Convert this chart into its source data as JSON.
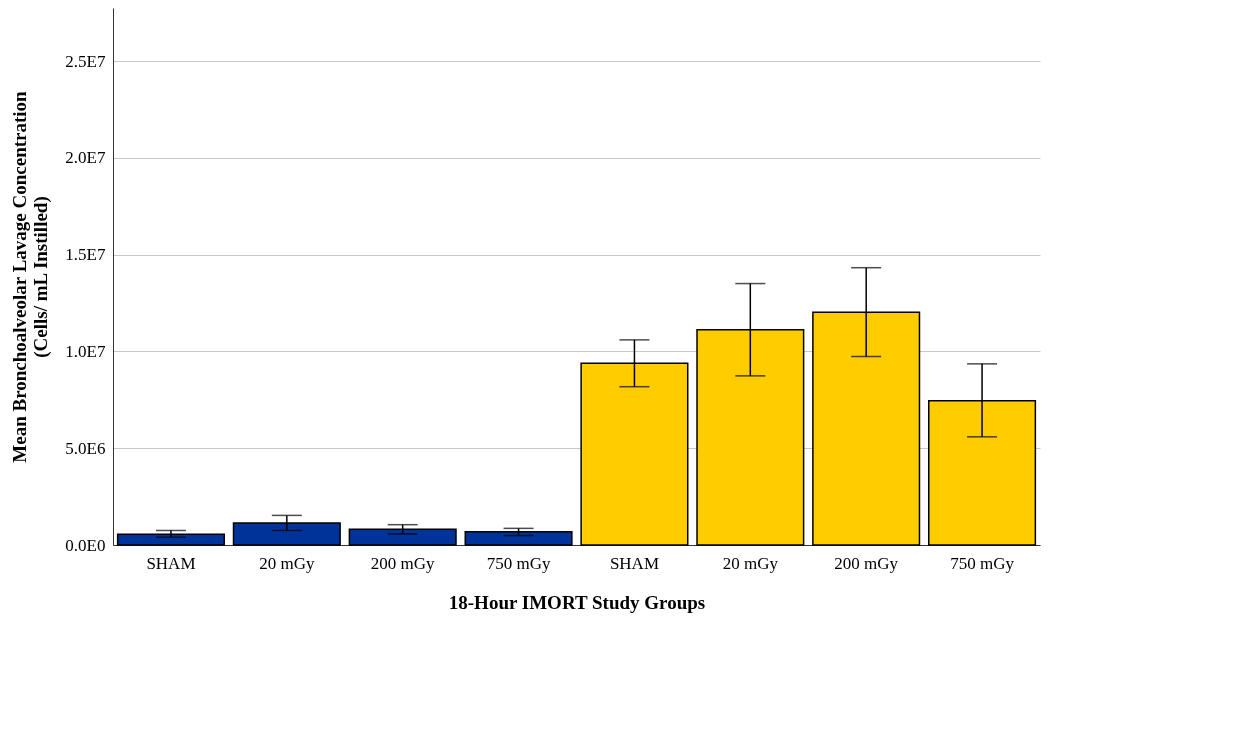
{
  "chart_data": {
    "type": "bar",
    "xlabel": "18-Hour IMORT Study Groups",
    "ylabel": "Mean Bronchoalveolar Lavage Concentration\n(Cells/ mL Instilled)",
    "categories": [
      "SHAM",
      "20 mGy",
      "200 mGy",
      "750 mGy",
      "SHAM",
      "20 mGy",
      "200 mGy",
      "750 mGy"
    ],
    "values": [
      560000,
      1140000,
      820000,
      690000,
      9390000,
      11120000,
      12030000,
      7460000
    ],
    "colors": [
      "#00339a",
      "#00339a",
      "#00339a",
      "#00339a",
      "#ffcc00",
      "#ffcc00",
      "#ffcc00",
      "#ffcc00"
    ],
    "errors": [
      [
        400000,
        750000
      ],
      [
        750000,
        1530000
      ],
      [
        570000,
        1050000
      ],
      [
        490000,
        860000
      ],
      [
        8180000,
        10600000
      ],
      [
        8740000,
        13510000
      ],
      [
        9740000,
        14330000
      ],
      [
        5590000,
        9360000
      ]
    ],
    "ylim": [
      0,
      27750000
    ],
    "yticks": [
      {
        "value": 0,
        "label": "0.0E0"
      },
      {
        "value": 5000000,
        "label": "5.0E6"
      },
      {
        "value": 10000000,
        "label": "1.0E7"
      },
      {
        "value": 15000000,
        "label": "1.5E7"
      },
      {
        "value": 20000000,
        "label": "2.0E7"
      },
      {
        "value": 25000000,
        "label": "2.5E7"
      }
    ],
    "grid": "y",
    "legend": false
  }
}
